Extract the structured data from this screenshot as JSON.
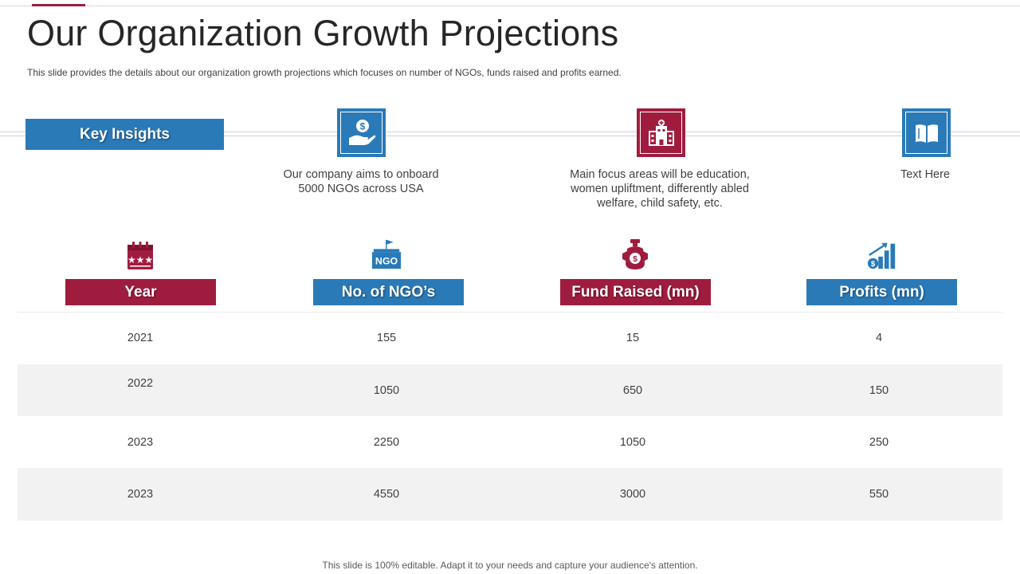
{
  "title": "Our Organization Growth Projections",
  "subtitle": "This slide provides  the details about our organization  growth  projections which focuses on number of NGOs, funds raised and profits earned.",
  "key_insights_label": "Key Insights",
  "insights": [
    {
      "icon": "money-hand-icon",
      "text_lines": [
        "Our company aims to onboard",
        "5000 NGOs across USA"
      ]
    },
    {
      "icon": "hospital-icon",
      "text_lines": [
        "Main focus areas will be education,",
        "women upliftment, differently abled",
        "welfare, child safety, etc."
      ]
    },
    {
      "icon": "book-icon",
      "text_lines": [
        "Text Here"
      ]
    }
  ],
  "columns": [
    {
      "label": "Year",
      "icon": "calendar-icon",
      "color": "#a01c3e"
    },
    {
      "label": "No. of NGO’s",
      "icon": "ngo-building-icon",
      "color": "#2a7ab8"
    },
    {
      "label": "Fund Raised (mn)",
      "icon": "donation-jar-icon",
      "color": "#a01c3e"
    },
    {
      "label": "Profits (mn)",
      "icon": "growth-chart-icon",
      "color": "#2a7ab8"
    }
  ],
  "rows": [
    [
      "2021",
      "155",
      "15",
      "4"
    ],
    [
      "2022",
      "1050",
      "650",
      "150"
    ],
    [
      "2023",
      "2250",
      "1050",
      "250"
    ],
    [
      "2023",
      "4550",
      "3000",
      "550"
    ]
  ],
  "footer": "This slide is 100% editable. Adapt it to your needs and capture your audience's attention.",
  "colors": {
    "accent_red": "#a01c3e",
    "accent_blue": "#2a7ab8",
    "row_shade": "#f2f2f2"
  }
}
